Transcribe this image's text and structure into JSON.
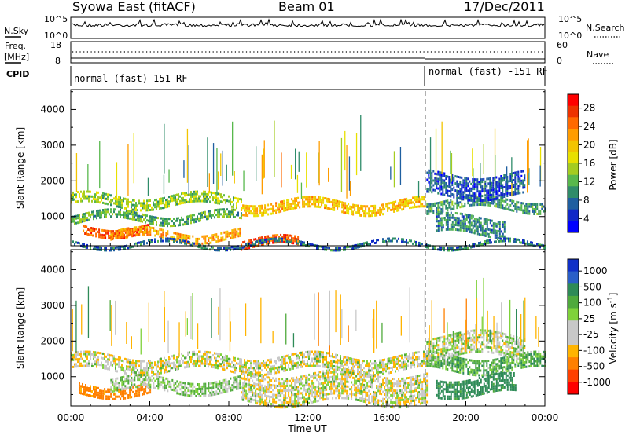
{
  "header": {
    "station": "Syowa East (fitACF)",
    "beam": "Beam 01",
    "date": "17/Dec/2011"
  },
  "panels": {
    "nsky_label": "N.Sky",
    "nsearch_label": "N.Search",
    "nsky_ticks": [
      "10^5",
      "10^0"
    ],
    "nsearch_ticks": [
      "10^5",
      "10^0"
    ],
    "freq_label": "Freq.",
    "freq_unit": "[MHz]",
    "freq_ticks": [
      "18",
      "8"
    ],
    "nave_label": "Nave",
    "nave_ticks": [
      "60",
      "0"
    ],
    "cpid_label": "CPID",
    "cpid_segments": [
      {
        "start": 0.0,
        "end": 17.97,
        "text": "normal (fast) 151 RF"
      },
      {
        "start": 17.97,
        "end": 24.0,
        "text": "normal (fast) -151 RF"
      }
    ]
  },
  "chart_data": [
    {
      "type": "heatmap",
      "title": "",
      "xlabel": "Time UT",
      "ylabel": "Slant Range [km]",
      "colorbar_label": "Power [dB]",
      "colorbar_ticks": [
        "28",
        "24",
        "20",
        "16",
        "12",
        "8",
        "4"
      ],
      "colorbar_colors": [
        "#ff0000",
        "#ee3300",
        "#ff6a00",
        "#ff9c00",
        "#f2c400",
        "#e8e000",
        "#a4cc20",
        "#58b84c",
        "#2f8c6a",
        "#1f5fa0",
        "#1028c8",
        "#0000ff"
      ],
      "xlim": [
        0,
        24
      ],
      "ylim": [
        180,
        4560
      ],
      "xticks": [
        "00:00",
        "04:00",
        "08:00",
        "12:00",
        "16:00",
        "20:00",
        "00:00"
      ],
      "yticks": [
        "1000",
        "2000",
        "3000",
        "4000"
      ],
      "bands": [
        {
          "t0": 0.0,
          "t1": 8.6,
          "r0": 1300,
          "r1": 1600,
          "power": 14
        },
        {
          "t0": 0.6,
          "t1": 4.0,
          "r0": 500,
          "r1": 750,
          "power": 26
        },
        {
          "t0": 2.0,
          "t1": 8.6,
          "r0": 350,
          "r1": 600,
          "power": 22
        },
        {
          "t0": 0.0,
          "t1": 8.6,
          "r0": 900,
          "r1": 1100,
          "power": 12
        },
        {
          "t0": 8.6,
          "t1": 18.0,
          "r0": 1150,
          "r1": 1450,
          "power": 20
        },
        {
          "t0": 8.6,
          "t1": 11.5,
          "r0": 180,
          "r1": 380,
          "power": 26
        },
        {
          "t0": 18.0,
          "t1": 24.0,
          "r0": 1200,
          "r1": 1500,
          "power": 10
        },
        {
          "t0": 18.5,
          "t1": 22.0,
          "r0": 500,
          "r1": 1000,
          "power": 9
        },
        {
          "t0": 18.0,
          "t1": 23.0,
          "r0": 1600,
          "r1": 2200,
          "power": 6
        },
        {
          "t0": 0.0,
          "t1": 24.0,
          "r0": 180,
          "r1": 280,
          "power": 8
        }
      ]
    },
    {
      "type": "heatmap",
      "title": "",
      "xlabel": "Time UT",
      "ylabel": "Slant Range [km]",
      "colorbar_label": "Velocity [m s^-1]",
      "colorbar_ticks": [
        "1000",
        "500",
        "100",
        "25",
        "-25",
        "-100",
        "-500",
        "-1000"
      ],
      "colorbar_colors": [
        "#1030c8",
        "#2a5fc8",
        "#2e8b57",
        "#4faa3c",
        "#7fd23a",
        "#c8c8c8",
        "#c8c8c8",
        "#ffb400",
        "#ff8000",
        "#ff4000",
        "#ff0000"
      ],
      "xlim": [
        0,
        24
      ],
      "ylim": [
        180,
        4560
      ],
      "xticks": [
        "00:00",
        "04:00",
        "08:00",
        "12:00",
        "16:00",
        "20:00",
        "00:00"
      ],
      "yticks": [
        "1000",
        "2000",
        "3000",
        "4000"
      ],
      "bands": [
        {
          "t0": 0.0,
          "t1": 18.0,
          "r0": 1150,
          "r1": 1600,
          "velocity": 0
        },
        {
          "t0": 0.4,
          "t1": 4.0,
          "r0": 500,
          "r1": 800,
          "velocity": -150
        },
        {
          "t0": 2.0,
          "t1": 8.6,
          "r0": 600,
          "r1": 950,
          "velocity": 40
        },
        {
          "t0": 8.6,
          "t1": 18.0,
          "r0": 250,
          "r1": 1100,
          "velocity": 0
        },
        {
          "t0": 18.0,
          "t1": 24.0,
          "r0": 1200,
          "r1": 1600,
          "velocity": 80
        },
        {
          "t0": 18.5,
          "t1": 22.5,
          "r0": 500,
          "r1": 1000,
          "velocity": 150
        },
        {
          "t0": 18.0,
          "t1": 23.0,
          "r0": 1600,
          "r1": 2200,
          "velocity": 20
        }
      ]
    }
  ]
}
